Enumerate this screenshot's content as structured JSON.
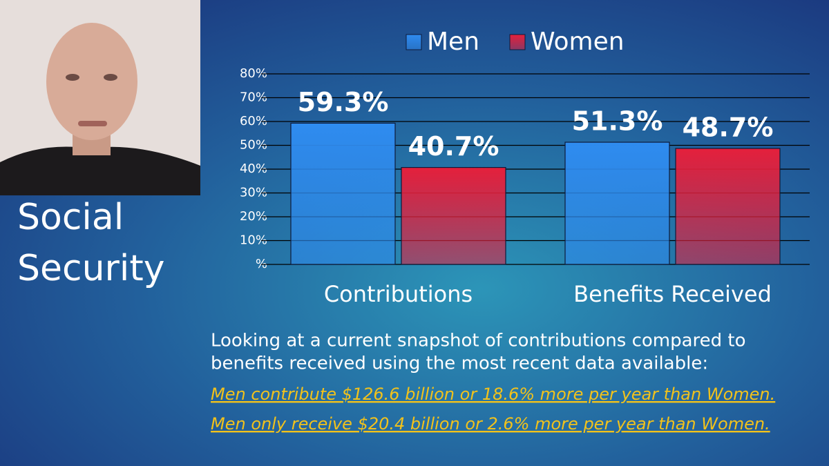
{
  "chart_data": {
    "type": "bar",
    "categories": [
      "Contributions",
      "Benefits Received"
    ],
    "series": [
      {
        "name": "Men",
        "color": "#2f8cf0",
        "values": [
          59.3,
          51.3
        ],
        "value_labels": [
          "59.3%",
          "51.3%"
        ]
      },
      {
        "name": "Women",
        "color": "#e4203c",
        "values": [
          40.7,
          48.7
        ],
        "value_labels": [
          "40.7%",
          "48.7%"
        ]
      }
    ],
    "ylim": [
      0,
      80
    ],
    "yticks": [
      {
        "value": 0,
        "label": "%"
      },
      {
        "value": 10,
        "label": "10%"
      },
      {
        "value": 20,
        "label": "20%"
      },
      {
        "value": 30,
        "label": "30%"
      },
      {
        "value": 40,
        "label": "40%"
      },
      {
        "value": 50,
        "label": "50%"
      },
      {
        "value": 60,
        "label": "60%"
      },
      {
        "value": 70,
        "label": "70%"
      },
      {
        "value": 80,
        "label": "80%"
      }
    ],
    "grid": true,
    "legend": "top"
  },
  "slide": {
    "heading": [
      "Social",
      "Security"
    ],
    "text": [
      "Looking at a current snapshot of contributions compared to",
      "benefits received using the most recent data available:"
    ],
    "links": [
      "Men contribute $126.6 billion or 18.6% more per year than Women.",
      "Men only receive $20.4 billion or 2.6% more per year than Women."
    ]
  }
}
